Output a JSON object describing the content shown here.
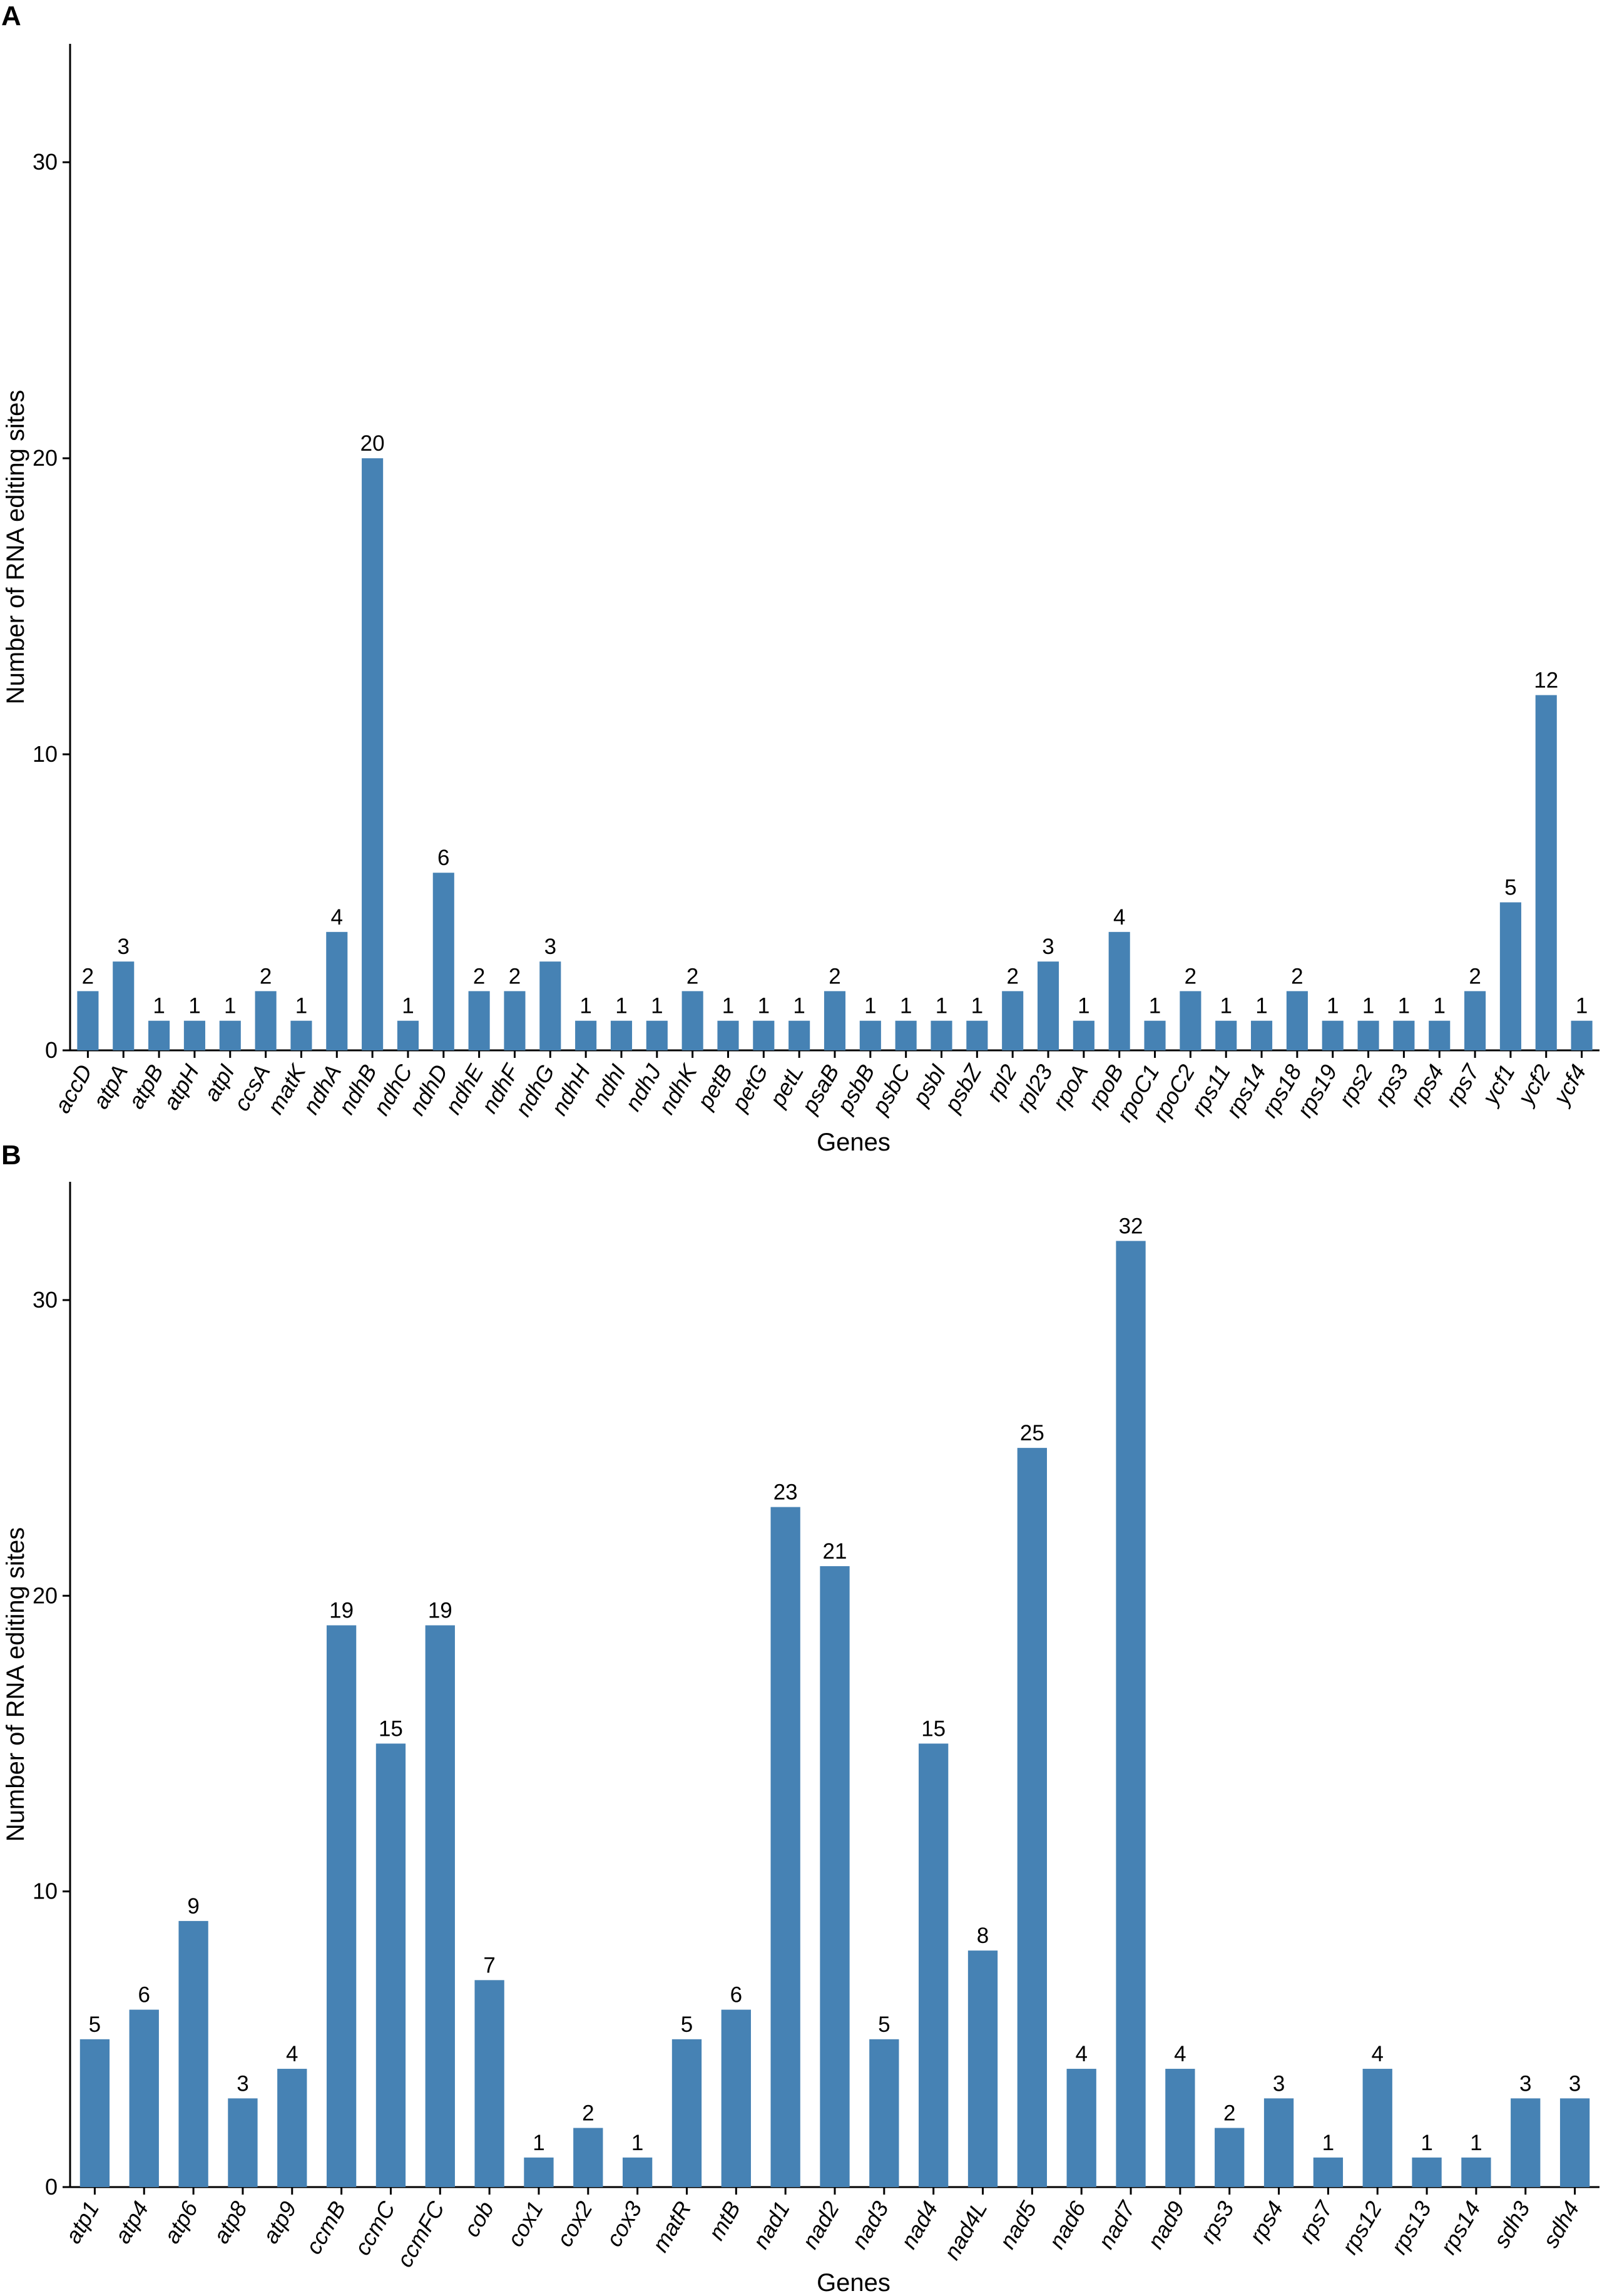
{
  "colors": {
    "bar": "#4682b4",
    "axis": "#000000"
  },
  "chart_data": [
    {
      "type": "bar",
      "panel": "A",
      "xlabel": "Genes",
      "ylabel": "Number of RNA editing sites",
      "ylim": [
        0,
        34
      ],
      "yticks": [
        0,
        10,
        20,
        30
      ],
      "grid": false,
      "categories": [
        "accD",
        "atpA",
        "atpB",
        "atpH",
        "atpI",
        "ccsA",
        "matK",
        "ndhA",
        "ndhB",
        "ndhC",
        "ndhD",
        "ndhE",
        "ndhF",
        "ndhG",
        "ndhH",
        "ndhI",
        "ndhJ",
        "ndhK",
        "petB",
        "petG",
        "petL",
        "psaB",
        "psbB",
        "psbC",
        "psbI",
        "psbZ",
        "rpl2",
        "rpl23",
        "rpoA",
        "rpoB",
        "rpoC1",
        "rpoC2",
        "rps11",
        "rps14",
        "rps18",
        "rps19",
        "rps2",
        "rps3",
        "rps4",
        "rps7",
        "ycf1",
        "ycf2",
        "ycf4"
      ],
      "values": [
        2,
        3,
        1,
        1,
        1,
        2,
        1,
        4,
        20,
        1,
        6,
        2,
        2,
        3,
        1,
        1,
        1,
        2,
        1,
        1,
        1,
        2,
        1,
        1,
        1,
        1,
        2,
        3,
        1,
        4,
        1,
        2,
        1,
        1,
        2,
        1,
        1,
        1,
        1,
        2,
        5,
        12,
        1
      ],
      "data_labels": [
        "2",
        "3",
        "1",
        "1",
        "1",
        "2",
        "1",
        "4",
        "20",
        "1",
        "6",
        "2",
        "2",
        "3",
        "1",
        "1",
        "1",
        "2",
        "1",
        "1",
        "1",
        "2",
        "1",
        "1",
        "1",
        "1",
        "2",
        "3",
        "1",
        "4",
        "1",
        "2",
        "1",
        "1",
        "2",
        "1",
        "1",
        "1",
        "1",
        "2",
        "5",
        "12",
        "1"
      ]
    },
    {
      "type": "bar",
      "panel": "B",
      "xlabel": "Genes",
      "ylabel": "Number of RNA editing sites",
      "ylim": [
        0,
        34
      ],
      "yticks": [
        0,
        10,
        20,
        30
      ],
      "grid": false,
      "categories": [
        "atp1",
        "atp4",
        "atp6",
        "atp8",
        "atp9",
        "ccmB",
        "ccmC",
        "ccmFC",
        "cob",
        "cox1",
        "cox2",
        "cox3",
        "matR",
        "mtB",
        "nad1",
        "nad2",
        "nad3",
        "nad4",
        "nad4L",
        "nad5",
        "nad6",
        "nad7",
        "nad9",
        "rps3",
        "rps4",
        "rps7",
        "rps12",
        "rps13",
        "rps14",
        "sdh3",
        "sdh4"
      ],
      "values": [
        5,
        6,
        9,
        3,
        4,
        19,
        15,
        19,
        7,
        1,
        2,
        1,
        5,
        6,
        23,
        21,
        5,
        15,
        8,
        25,
        4,
        32,
        4,
        2,
        3,
        1,
        4,
        1,
        1,
        3,
        3
      ],
      "data_labels": [
        "5",
        "6",
        "9",
        "3",
        "4",
        "19",
        "15",
        "19",
        "7",
        "1",
        "2",
        "1",
        "5",
        "6",
        "23",
        "21",
        "5",
        "15",
        "8",
        "25",
        "4",
        "32",
        "4",
        "2",
        "3",
        "1",
        "4",
        "1",
        "1",
        "3",
        "3"
      ]
    }
  ]
}
